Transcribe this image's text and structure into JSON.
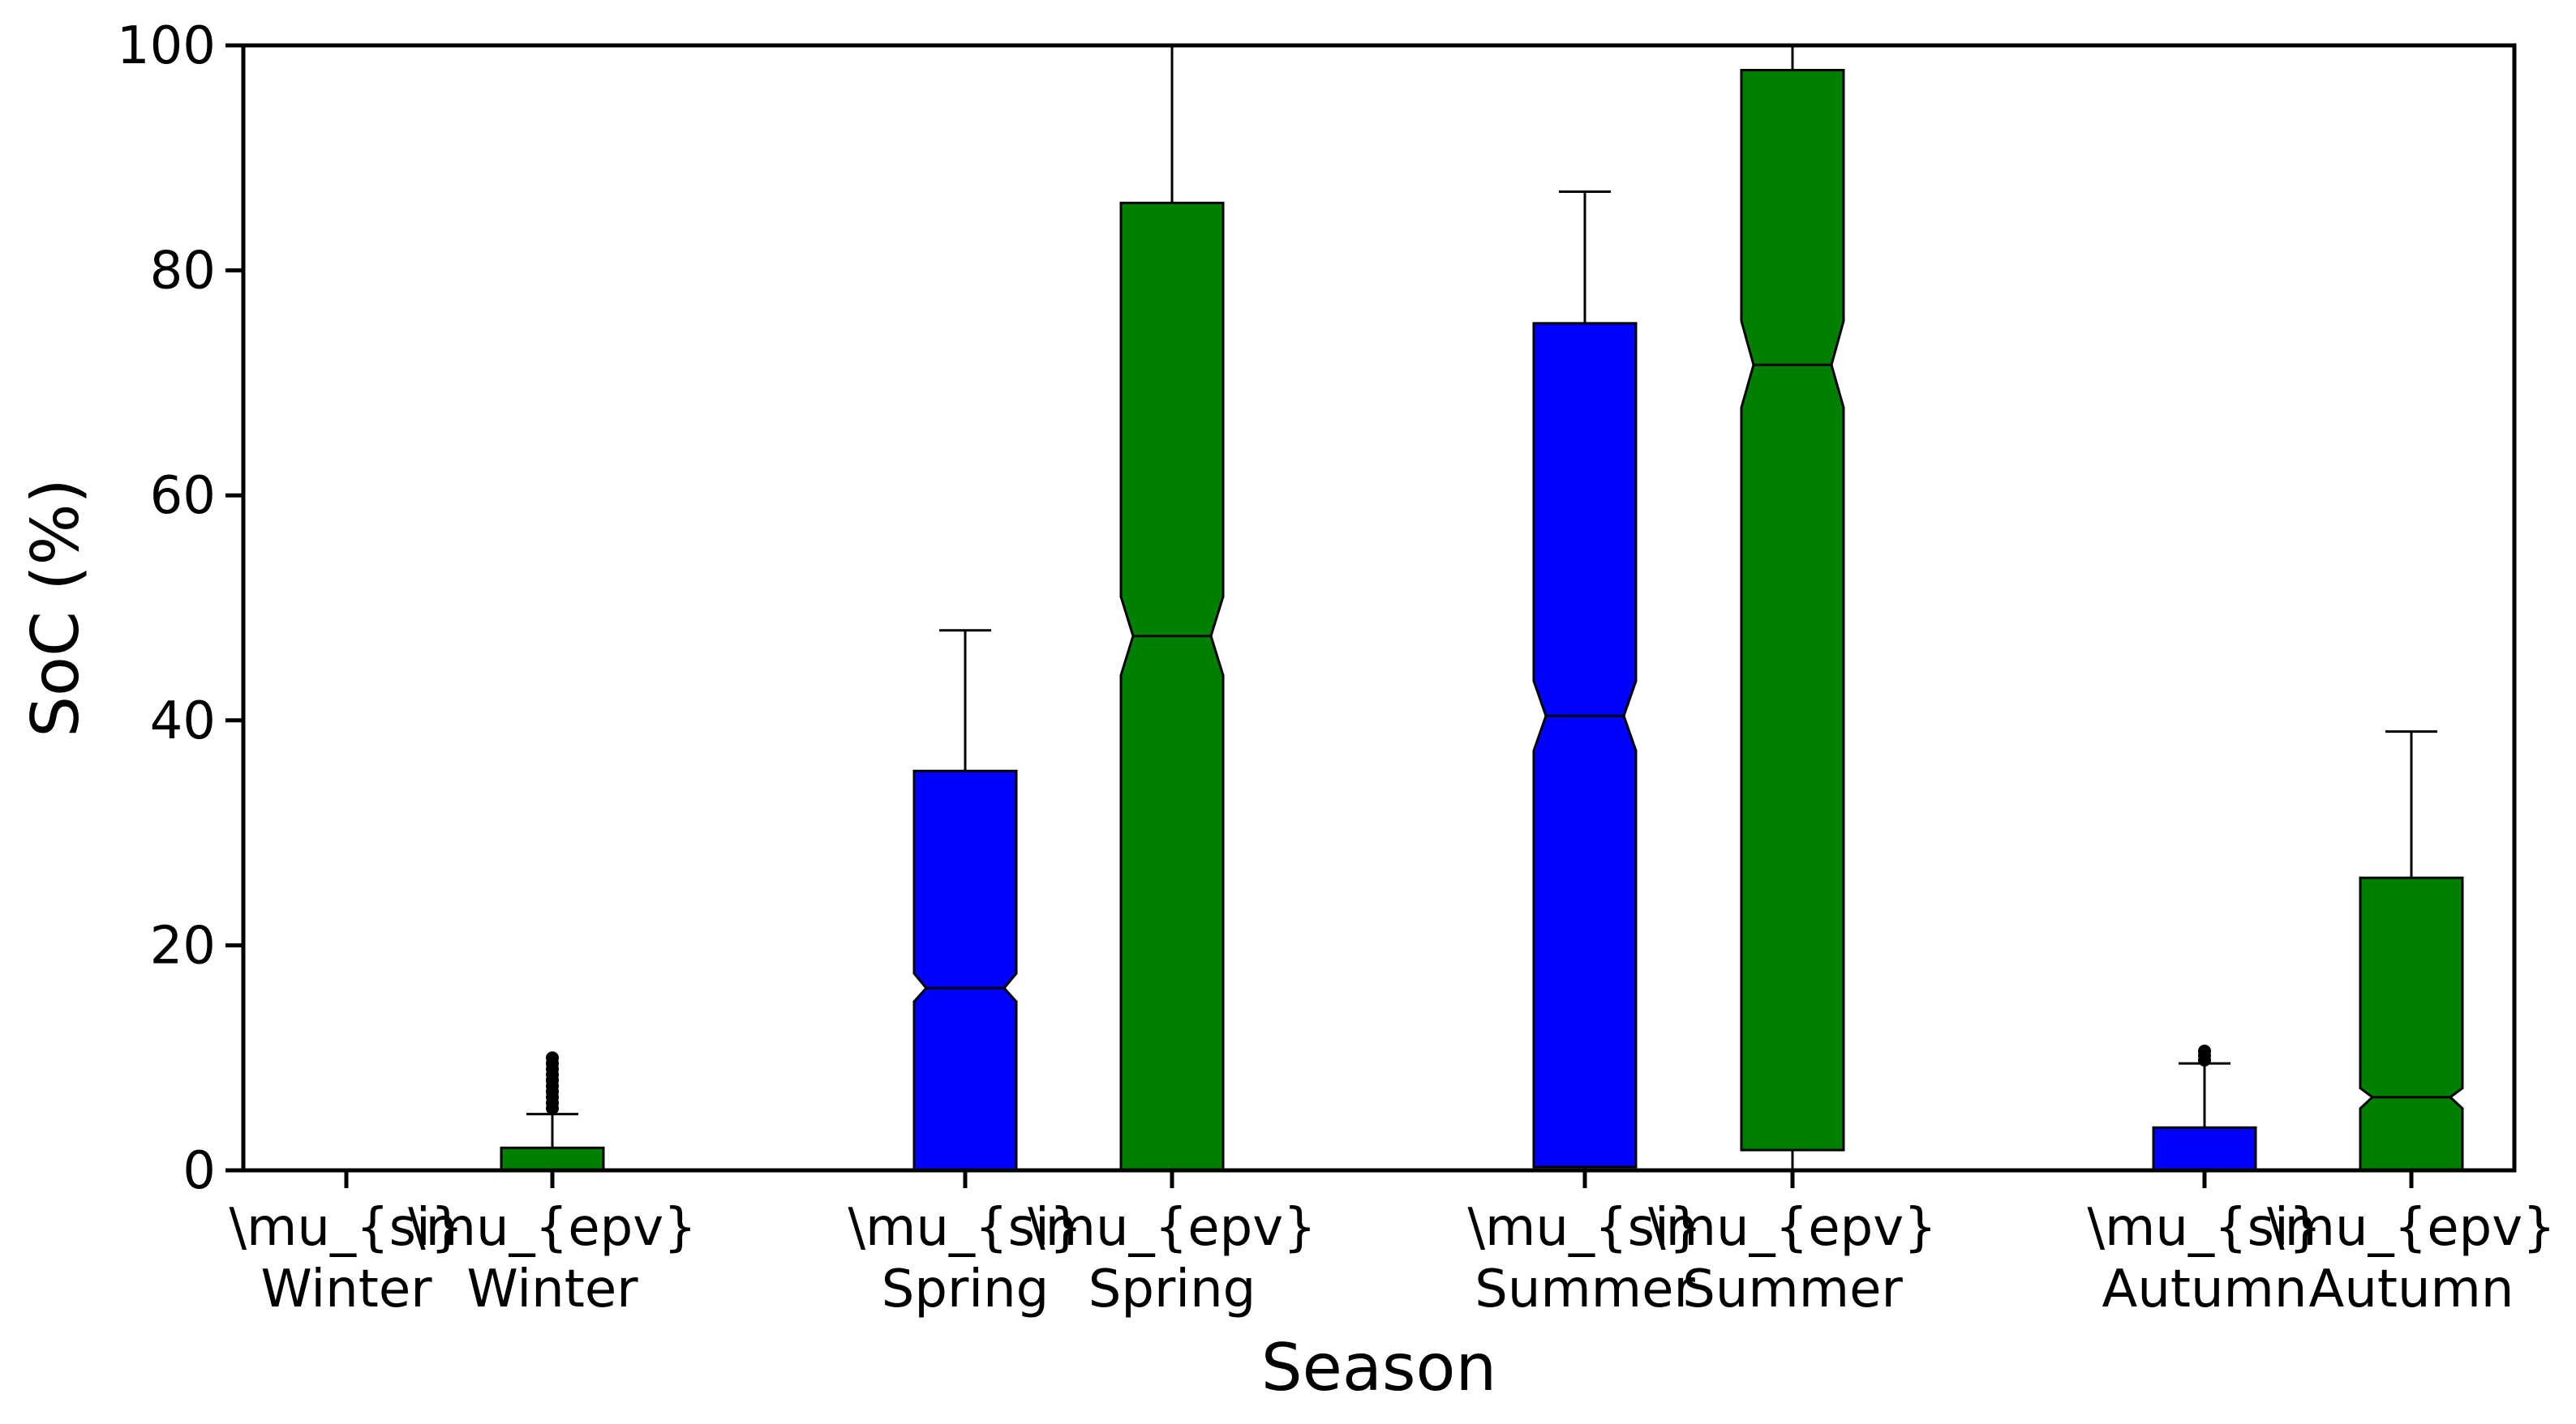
{
  "chart_data": {
    "type": "boxplot",
    "title": "",
    "xlabel": "Season",
    "ylabel": "SoC (%)",
    "ylim": [
      0,
      100
    ],
    "yticks": [
      0,
      20,
      40,
      60,
      80,
      100
    ],
    "grid": false,
    "legend": "none",
    "notched": true,
    "colors": {
      "si": "#0000ff",
      "epv": "#008000",
      "edge": "#000000"
    },
    "boxes": [
      {
        "line1": "\\mu_{si}",
        "line2": "Winter",
        "group": "si",
        "q1": 0,
        "median": 0,
        "q3": 0,
        "whisker_low": 0,
        "whisker_high": 0,
        "notch_low": 0,
        "notch_high": 0,
        "fliers": []
      },
      {
        "line1": "\\mu_{epv}",
        "line2": "Winter",
        "group": "epv",
        "q1": 0,
        "median": 0,
        "q3": 2,
        "whisker_low": 0,
        "whisker_high": 5,
        "notch_low": 0,
        "notch_high": 0,
        "fliers": [
          5.5,
          6,
          6.5,
          7,
          7.5,
          8,
          8.5,
          9,
          9.5,
          10
        ]
      },
      {
        "line1": "\\mu_{si}",
        "line2": "Spring",
        "group": "si",
        "q1": 0,
        "median": 16.2,
        "q3": 35.5,
        "whisker_low": 0,
        "whisker_high": 48,
        "notch_low": 15,
        "notch_high": 17.5,
        "fliers": []
      },
      {
        "line1": "\\mu_{epv}",
        "line2": "Spring",
        "group": "epv",
        "q1": 0,
        "median": 47.5,
        "q3": 86,
        "whisker_low": 0,
        "whisker_high": 100,
        "notch_low": 44,
        "notch_high": 51,
        "fliers": []
      },
      {
        "line1": "\\mu_{si}",
        "line2": "Summer",
        "group": "si",
        "q1": 0.3,
        "median": 40.4,
        "q3": 75.3,
        "whisker_low": 0,
        "whisker_high": 87,
        "notch_low": 37.3,
        "notch_high": 43.5,
        "fliers": []
      },
      {
        "line1": "\\mu_{epv}",
        "line2": "Summer",
        "group": "epv",
        "q1": 1.8,
        "median": 71.6,
        "q3": 97.8,
        "whisker_low": 0,
        "whisker_high": 100,
        "notch_low": 67.8,
        "notch_high": 75.5,
        "fliers": []
      },
      {
        "line1": "\\mu_{si}",
        "line2": "Autumn",
        "group": "si",
        "q1": 0,
        "median": 0,
        "q3": 3.8,
        "whisker_low": 0,
        "whisker_high": 9.5,
        "notch_low": 0,
        "notch_high": 0,
        "fliers": [
          9.8,
          10.2,
          10.6
        ]
      },
      {
        "line1": "\\mu_{epv}",
        "line2": "Autumn",
        "group": "epv",
        "q1": 0,
        "median": 6.5,
        "q3": 26,
        "whisker_low": 0,
        "whisker_high": 39,
        "notch_low": 5.5,
        "notch_high": 7.3,
        "fliers": []
      }
    ]
  }
}
